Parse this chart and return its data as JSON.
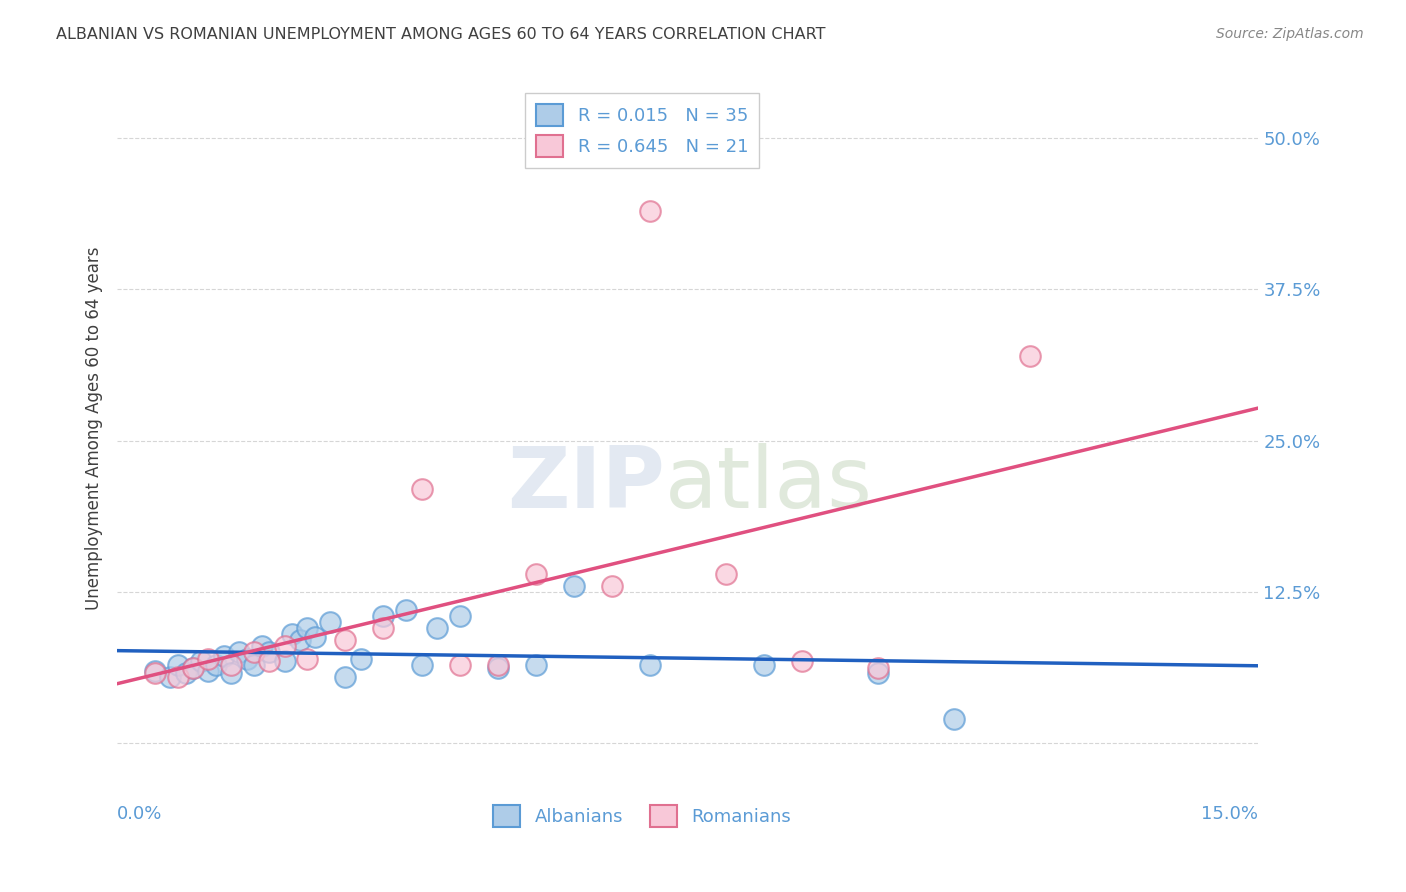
{
  "title": "ALBANIAN VS ROMANIAN UNEMPLOYMENT AMONG AGES 60 TO 64 YEARS CORRELATION CHART",
  "source": "Source: ZipAtlas.com",
  "ylabel": "Unemployment Among Ages 60 to 64 years",
  "ytick_labels": [
    "",
    "12.5%",
    "25.0%",
    "37.5%",
    "50.0%"
  ],
  "ytick_values": [
    0,
    0.125,
    0.25,
    0.375,
    0.5
  ],
  "xlim": [
    0,
    0.15
  ],
  "ylim": [
    -0.03,
    0.55
  ],
  "legend_entries": [
    {
      "label": "R = 0.015   N = 35",
      "color": "#aec6e8"
    },
    {
      "label": "R = 0.645   N = 21",
      "color": "#f4b8c8"
    }
  ],
  "albanian_x": [
    0.005,
    0.007,
    0.008,
    0.009,
    0.01,
    0.011,
    0.012,
    0.013,
    0.014,
    0.015,
    0.016,
    0.017,
    0.018,
    0.019,
    0.02,
    0.022,
    0.023,
    0.024,
    0.025,
    0.026,
    0.028,
    0.03,
    0.032,
    0.035,
    0.038,
    0.04,
    0.042,
    0.045,
    0.05,
    0.055,
    0.06,
    0.07,
    0.085,
    0.1,
    0.11
  ],
  "albanian_y": [
    0.06,
    0.055,
    0.065,
    0.058,
    0.062,
    0.068,
    0.06,
    0.065,
    0.072,
    0.058,
    0.075,
    0.07,
    0.065,
    0.08,
    0.075,
    0.068,
    0.09,
    0.085,
    0.095,
    0.088,
    0.1,
    0.055,
    0.07,
    0.105,
    0.11,
    0.065,
    0.095,
    0.105,
    0.062,
    0.065,
    0.13,
    0.065,
    0.065,
    0.058,
    0.02
  ],
  "romanian_x": [
    0.005,
    0.008,
    0.01,
    0.012,
    0.015,
    0.018,
    0.02,
    0.022,
    0.025,
    0.03,
    0.035,
    0.04,
    0.045,
    0.05,
    0.055,
    0.065,
    0.07,
    0.08,
    0.09,
    0.1,
    0.12
  ],
  "romanian_y": [
    0.058,
    0.055,
    0.062,
    0.07,
    0.065,
    0.075,
    0.068,
    0.08,
    0.07,
    0.085,
    0.095,
    0.21,
    0.065,
    0.065,
    0.14,
    0.13,
    0.44,
    0.14,
    0.068,
    0.062,
    0.32
  ],
  "blue_scatter_face": "#aecce8",
  "blue_scatter_edge": "#5b9bd5",
  "pink_scatter_face": "#f8c8d8",
  "pink_scatter_edge": "#e07090",
  "blue_line_color": "#2060c0",
  "pink_line_color": "#e05080",
  "grid_color": "#cccccc",
  "title_color": "#404040",
  "axis_label_color": "#5b9bd5",
  "background_color": "#ffffff"
}
